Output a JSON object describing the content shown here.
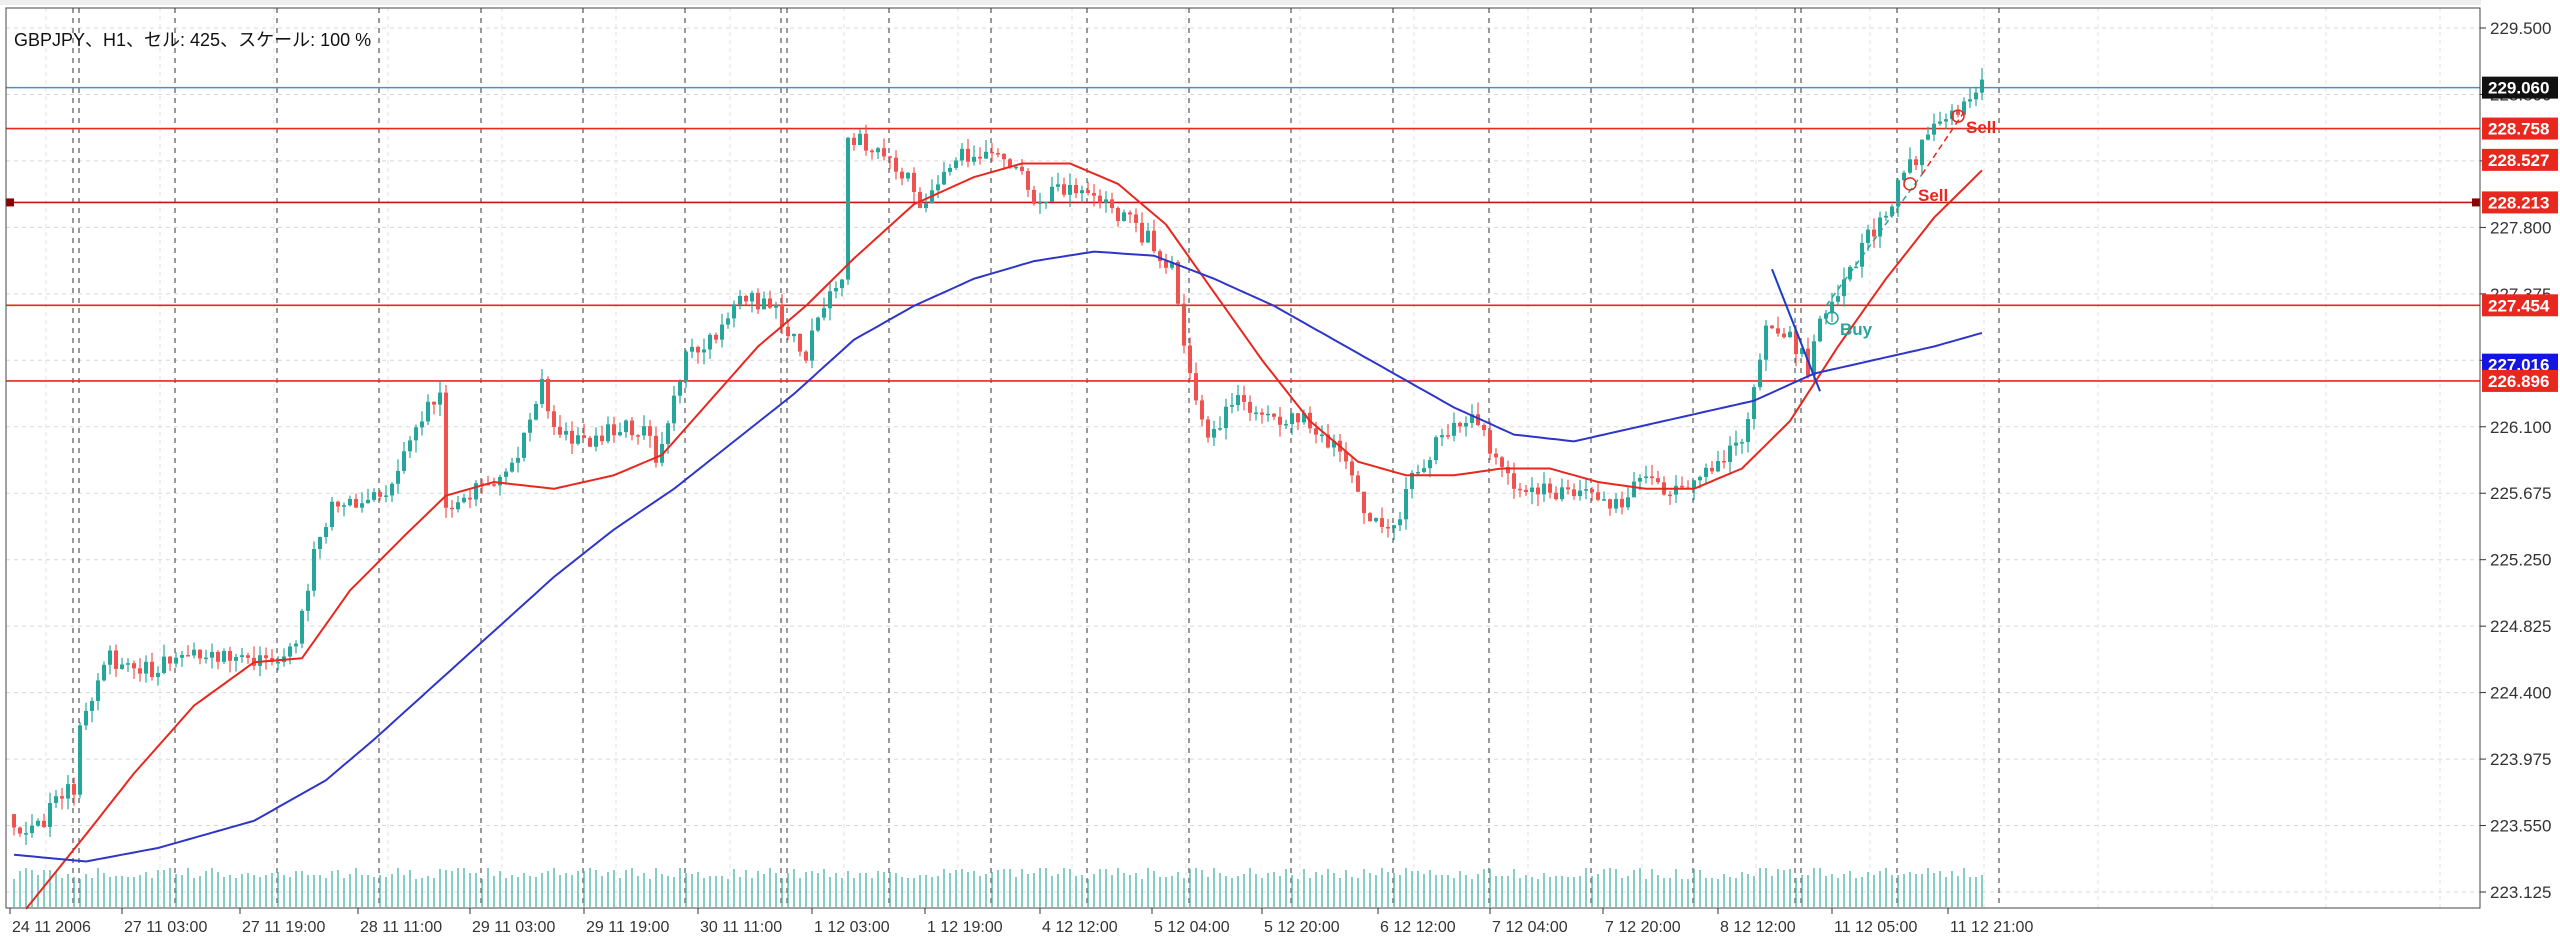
{
  "chart_data": {
    "type": "candlestick",
    "title": "GBPJPY、H1、セル: 425、スケール: 100 %",
    "symbol": "GBPJPY",
    "timeframe": "H1",
    "bar_count": 425,
    "scale_percent": 100,
    "ylim": [
      223.05,
      229.5
    ],
    "yticks": [
      "229.500",
      "228.800",
      "228.375",
      "227.800",
      "227.375",
      "226.525",
      "226.100",
      "225.675",
      "225.250",
      "224.825",
      "224.400",
      "223.975",
      "223.550",
      "223.125"
    ],
    "xticks": [
      "24 11 2006",
      "27 11 03:00",
      "27 11 19:00",
      "28 11 11:00",
      "29 11 03:00",
      "29 11 19:00",
      "30 11 11:00",
      "1 12 03:00",
      "1 12 19:00",
      "4 12 12:00",
      "5 12 04:00",
      "5 12 20:00",
      "6 12 12:00",
      "7 12 04:00",
      "7 12 20:00",
      "8 12 12:00",
      "11 12 05:00",
      "11 12 21:00"
    ],
    "price_path": [
      [
        0,
        223.7
      ],
      [
        4,
        223.55
      ],
      [
        9,
        223.85
      ],
      [
        11,
        223.9
      ],
      [
        12,
        224.3
      ],
      [
        17,
        224.85
      ],
      [
        22,
        224.75
      ],
      [
        32,
        224.9
      ],
      [
        43,
        224.85
      ],
      [
        48,
        224.9
      ],
      [
        51,
        225.6
      ],
      [
        54,
        225.95
      ],
      [
        63,
        226.1
      ],
      [
        70,
        226.7
      ],
      [
        72,
        226.85
      ],
      [
        73,
        225.95
      ],
      [
        79,
        226.1
      ],
      [
        85,
        226.35
      ],
      [
        89,
        226.85
      ],
      [
        92,
        226.5
      ],
      [
        96,
        226.45
      ],
      [
        101,
        226.55
      ],
      [
        106,
        226.55
      ],
      [
        108,
        226.3
      ],
      [
        111,
        226.75
      ],
      [
        113,
        227.15
      ],
      [
        118,
        227.2
      ],
      [
        123,
        227.55
      ],
      [
        128,
        227.4
      ],
      [
        133,
        227.1
      ],
      [
        139,
        227.7
      ],
      [
        140,
        228.7
      ],
      [
        145,
        228.6
      ],
      [
        149,
        228.45
      ],
      [
        152,
        228.2
      ],
      [
        157,
        228.5
      ],
      [
        162,
        228.6
      ],
      [
        166,
        228.55
      ],
      [
        172,
        228.2
      ],
      [
        175,
        228.3
      ],
      [
        181,
        228.25
      ],
      [
        186,
        228.1
      ],
      [
        191,
        227.9
      ],
      [
        194,
        227.75
      ],
      [
        197,
        226.9
      ],
      [
        200,
        226.5
      ],
      [
        205,
        226.75
      ],
      [
        211,
        226.65
      ],
      [
        216,
        226.6
      ],
      [
        222,
        226.4
      ],
      [
        226,
        225.9
      ],
      [
        231,
        225.8
      ],
      [
        234,
        226.2
      ],
      [
        240,
        226.55
      ],
      [
        245,
        226.6
      ],
      [
        250,
        226.15
      ],
      [
        256,
        226.1
      ],
      [
        262,
        226.05
      ],
      [
        268,
        226.0
      ],
      [
        273,
        226.15
      ],
      [
        279,
        226.1
      ],
      [
        285,
        226.25
      ],
      [
        290,
        226.55
      ],
      [
        293,
        227.35
      ],
      [
        297,
        227.2
      ],
      [
        300,
        227.0
      ],
      [
        303,
        227.45
      ],
      [
        306,
        227.6
      ],
      [
        309,
        227.9
      ],
      [
        312,
        228.05
      ],
      [
        316,
        228.4
      ],
      [
        320,
        228.7
      ],
      [
        324,
        228.85
      ],
      [
        328,
        229.05
      ]
    ],
    "series": [
      {
        "name": "",
        "type": "candles",
        "up_color": "#26a69a",
        "down_color": "#ef5350"
      },
      {
        "name": "",
        "type": "line",
        "color": "#e8271e",
        "points": [
          [
            2,
            223.0
          ],
          [
            12,
            223.55
          ],
          [
            20,
            224.0
          ],
          [
            30,
            224.5
          ],
          [
            40,
            224.82
          ],
          [
            48,
            224.85
          ],
          [
            56,
            225.35
          ],
          [
            65,
            225.75
          ],
          [
            72,
            226.05
          ],
          [
            80,
            226.15
          ],
          [
            90,
            226.1
          ],
          [
            100,
            226.2
          ],
          [
            108,
            226.35
          ],
          [
            116,
            226.75
          ],
          [
            124,
            227.15
          ],
          [
            132,
            227.45
          ],
          [
            140,
            227.8
          ],
          [
            150,
            228.2
          ],
          [
            160,
            228.4
          ],
          [
            168,
            228.5
          ],
          [
            176,
            228.5
          ],
          [
            184,
            228.35
          ],
          [
            192,
            228.05
          ],
          [
            200,
            227.55
          ],
          [
            208,
            227.05
          ],
          [
            216,
            226.6
          ],
          [
            224,
            226.3
          ],
          [
            232,
            226.2
          ],
          [
            240,
            226.2
          ],
          [
            248,
            226.25
          ],
          [
            256,
            226.25
          ],
          [
            264,
            226.15
          ],
          [
            272,
            226.1
          ],
          [
            280,
            226.1
          ],
          [
            288,
            226.25
          ],
          [
            296,
            226.6
          ],
          [
            304,
            227.15
          ],
          [
            312,
            227.65
          ],
          [
            320,
            228.1
          ],
          [
            328,
            228.45
          ]
        ]
      },
      {
        "name": "",
        "type": "line",
        "color": "#2e35c9",
        "points": [
          [
            0,
            223.4
          ],
          [
            12,
            223.35
          ],
          [
            24,
            223.45
          ],
          [
            40,
            223.65
          ],
          [
            52,
            223.95
          ],
          [
            60,
            224.25
          ],
          [
            70,
            224.65
          ],
          [
            80,
            225.05
          ],
          [
            90,
            225.45
          ],
          [
            100,
            225.8
          ],
          [
            110,
            226.1
          ],
          [
            120,
            226.45
          ],
          [
            130,
            226.8
          ],
          [
            140,
            227.2
          ],
          [
            150,
            227.45
          ],
          [
            160,
            227.65
          ],
          [
            170,
            227.78
          ],
          [
            180,
            227.85
          ],
          [
            190,
            227.82
          ],
          [
            200,
            227.65
          ],
          [
            210,
            227.45
          ],
          [
            220,
            227.2
          ],
          [
            230,
            226.95
          ],
          [
            240,
            226.7
          ],
          [
            250,
            226.5
          ],
          [
            260,
            226.45
          ],
          [
            270,
            226.55
          ],
          [
            280,
            226.65
          ],
          [
            290,
            226.75
          ],
          [
            300,
            226.95
          ],
          [
            310,
            227.05
          ],
          [
            320,
            227.15
          ],
          [
            328,
            227.25
          ]
        ]
      }
    ],
    "horizontal_lines": [
      {
        "price": 229.06,
        "color": "#4a90c8"
      },
      {
        "price": 228.758,
        "color": "#e8271e"
      },
      {
        "price": 228.213,
        "color": "#cc1111"
      },
      {
        "price": 227.454,
        "color": "#e8271e"
      },
      {
        "price": 226.896,
        "color": "#e8271e"
      }
    ],
    "price_labels": [
      {
        "text": "229.060",
        "price": 229.06,
        "bg": "#111111",
        "fg": "#ffffff"
      },
      {
        "text": "228.758",
        "price": 228.758,
        "bg": "#e8271e",
        "fg": "#ffffff"
      },
      {
        "text": "228.527",
        "price": 228.527,
        "bg": "#e8271e",
        "fg": "#ffffff"
      },
      {
        "text": "228.213",
        "price": 228.213,
        "bg": "#e8271e",
        "fg": "#ffffff"
      },
      {
        "text": "227.454",
        "price": 227.454,
        "bg": "#e8271e",
        "fg": "#ffffff"
      },
      {
        "text": "227.016",
        "price": 227.016,
        "bg": "#1515e0",
        "fg": "#ffffff"
      },
      {
        "text": "226.896",
        "price": 226.896,
        "bg": "#e8271e",
        "fg": "#ffffff"
      }
    ],
    "annotations": [
      {
        "text": "Buy",
        "bar": 303,
        "price": 227.36,
        "color": "#26a69a"
      },
      {
        "text": "Sell",
        "bar": 316,
        "price": 228.35,
        "color": "#e8271e"
      },
      {
        "text": "Sell",
        "bar": 324,
        "price": 228.85,
        "color": "#e8271e"
      }
    ],
    "grid": true,
    "volume_bars": true,
    "colors": {
      "up": "#26a69a",
      "down": "#ef5350",
      "background": "#ffffff",
      "axis": "#333333",
      "volume": "#26a69a"
    }
  }
}
